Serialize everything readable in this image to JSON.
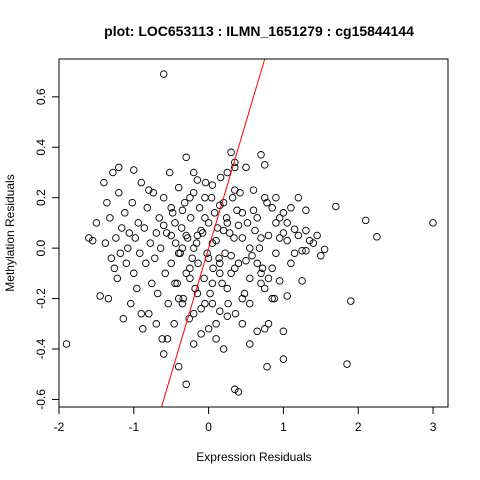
{
  "chart_data": {
    "type": "scatter",
    "title": "plot: LOC653113 : ILMN_1651279 : cg15844144",
    "xlabel": "Expression Residuals",
    "ylabel": "Methylation Residuals",
    "xlim": [
      -2.0,
      3.2
    ],
    "ylim": [
      -0.63,
      0.75
    ],
    "x_ticks": [
      -2,
      -1,
      0,
      1,
      2,
      3
    ],
    "x_tick_labels": [
      "-2",
      "-1",
      "0",
      "1",
      "2",
      "3"
    ],
    "y_ticks": [
      -0.6,
      -0.4,
      -0.2,
      0.0,
      0.2,
      0.4,
      0.6
    ],
    "y_tick_labels": [
      "-0.6",
      "-0.4",
      "-0.2",
      "0.0",
      "0.2",
      "0.4",
      "0.6"
    ],
    "point_color": "#000000",
    "fit_line": {
      "color": "#ff0000",
      "slope": 1.0,
      "intercept": 0.0
    },
    "points": [
      [
        -0.6,
        0.69
      ],
      [
        3.0,
        0.1
      ],
      [
        2.25,
        0.045
      ],
      [
        2.1,
        0.11
      ],
      [
        1.9,
        -0.21
      ],
      [
        1.85,
        -0.46
      ],
      [
        1.7,
        0.165
      ],
      [
        1.55,
        -0.005
      ],
      [
        1.5,
        -0.03
      ],
      [
        1.45,
        0.05
      ],
      [
        1.4,
        0.02
      ],
      [
        1.35,
        0.03
      ],
      [
        1.3,
        -0.01
      ],
      [
        1.25,
        -0.01
      ],
      [
        1.2,
        0.05
      ],
      [
        1.15,
        0.075
      ],
      [
        1.1,
        -0.06
      ],
      [
        1.05,
        0.03
      ],
      [
        1.0,
        0.14
      ],
      [
        0.95,
        0.12
      ],
      [
        0.9,
        0.2
      ],
      [
        0.88,
        -0.2
      ],
      [
        0.85,
        -0.2
      ],
      [
        0.8,
        -0.3
      ],
      [
        0.78,
        -0.47
      ],
      [
        0.75,
        -0.32
      ],
      [
        0.7,
        -0.1
      ],
      [
        1.3,
        0.15
      ],
      [
        1.2,
        0.2
      ],
      [
        1.25,
        -0.13
      ],
      [
        1.05,
        -0.19
      ],
      [
        1.0,
        -0.44
      ],
      [
        1.0,
        -0.33
      ],
      [
        0.95,
        0.04
      ],
      [
        0.9,
        0.1
      ],
      [
        0.85,
        -0.08
      ],
      [
        0.8,
        0.05
      ],
      [
        0.78,
        0.18
      ],
      [
        0.75,
        0.2
      ],
      [
        0.72,
        -0.08
      ],
      [
        0.7,
        -0.14
      ],
      [
        0.68,
        0.0
      ],
      [
        0.65,
        0.12
      ],
      [
        0.62,
        0.07
      ],
      [
        0.6,
        0.23
      ],
      [
        0.58,
        -0.03
      ],
      [
        0.55,
        -0.12
      ],
      [
        0.52,
        0.1
      ],
      [
        0.5,
        0.32
      ],
      [
        0.48,
        -0.18
      ],
      [
        0.45,
        0.04
      ],
      [
        0.42,
        0.22
      ],
      [
        0.4,
        -0.06
      ],
      [
        0.38,
        0.15
      ],
      [
        0.36,
        -0.26
      ],
      [
        0.34,
        0.04
      ],
      [
        0.32,
        0.2
      ],
      [
        0.3,
        -0.1
      ],
      [
        0.28,
        0.06
      ],
      [
        0.26,
        -0.22
      ],
      [
        0.24,
        0.12
      ],
      [
        0.22,
        -0.02
      ],
      [
        0.2,
        0.18
      ],
      [
        0.18,
        -0.14
      ],
      [
        0.16,
        0.28
      ],
      [
        0.14,
        -0.04
      ],
      [
        0.12,
        0.08
      ],
      [
        0.1,
        -0.3
      ],
      [
        0.08,
        0.14
      ],
      [
        0.06,
        -0.08
      ],
      [
        0.04,
        0.2
      ],
      [
        0.02,
        -0.18
      ],
      [
        0.0,
        0.1
      ],
      [
        -0.02,
        -0.02
      ],
      [
        -0.04,
        0.26
      ],
      [
        -0.06,
        -0.12
      ],
      [
        -0.08,
        0.06
      ],
      [
        -0.1,
        -0.24
      ],
      [
        -0.12,
        0.16
      ],
      [
        -0.14,
        -0.06
      ],
      [
        -0.16,
        0.02
      ],
      [
        -0.18,
        -0.16
      ],
      [
        -0.2,
        0.22
      ],
      [
        -0.22,
        -0.04
      ],
      [
        -0.24,
        0.12
      ],
      [
        -0.26,
        -0.28
      ],
      [
        -0.28,
        0.04
      ],
      [
        -0.3,
        -0.1
      ],
      [
        -0.32,
        0.18
      ],
      [
        -0.34,
        -0.2
      ],
      [
        -0.36,
        0.08
      ],
      [
        -0.38,
        -0.02
      ],
      [
        -0.4,
        0.24
      ],
      [
        -0.42,
        -0.14
      ],
      [
        -0.44,
        0.02
      ],
      [
        -0.46,
        -0.3
      ],
      [
        -0.48,
        0.14
      ],
      [
        -0.5,
        -0.06
      ],
      [
        -0.52,
        0.3
      ],
      [
        -0.54,
        -0.22
      ],
      [
        -0.56,
        0.06
      ],
      [
        -0.58,
        -0.1
      ],
      [
        -0.6,
        0.2
      ],
      [
        -0.62,
        -0.36
      ],
      [
        -0.64,
        0.0
      ],
      [
        -0.66,
        0.12
      ],
      [
        -0.68,
        -0.18
      ],
      [
        -0.7,
        0.06
      ],
      [
        -0.72,
        -0.04
      ],
      [
        -0.74,
        0.22
      ],
      [
        -0.76,
        -0.14
      ],
      [
        -0.78,
        0.02
      ],
      [
        -0.8,
        -0.26
      ],
      [
        -0.82,
        0.16
      ],
      [
        -0.84,
        -0.06
      ],
      [
        -0.86,
        0.08
      ],
      [
        -0.88,
        -0.32
      ],
      [
        -0.9,
        0.26
      ],
      [
        -0.92,
        -0.02
      ],
      [
        -0.94,
        0.1
      ],
      [
        -0.96,
        -0.16
      ],
      [
        -0.98,
        0.04
      ],
      [
        -1.0,
        -0.1
      ],
      [
        -1.02,
        0.18
      ],
      [
        -1.04,
        -0.22
      ],
      [
        -1.06,
        0.06
      ],
      [
        -1.08,
        0.0
      ],
      [
        -1.1,
        -0.06
      ],
      [
        -1.12,
        0.14
      ],
      [
        -1.14,
        -0.28
      ],
      [
        -1.16,
        0.08
      ],
      [
        -1.18,
        -0.02
      ],
      [
        -1.2,
        0.22
      ],
      [
        -1.22,
        -0.12
      ],
      [
        -1.24,
        0.04
      ],
      [
        -1.26,
        -0.08
      ],
      [
        -1.28,
        0.3
      ],
      [
        -1.3,
        -0.04
      ],
      [
        -1.32,
        0.12
      ],
      [
        -1.34,
        -0.2
      ],
      [
        -1.36,
        0.18
      ],
      [
        -1.38,
        0.02
      ],
      [
        -1.4,
        0.26
      ],
      [
        -1.45,
        -0.19
      ],
      [
        -1.5,
        0.1
      ],
      [
        -1.55,
        0.03
      ],
      [
        -1.6,
        0.04
      ],
      [
        -1.9,
        -0.38
      ],
      [
        -1.2,
        0.32
      ],
      [
        -1.0,
        0.31
      ],
      [
        -0.8,
        0.23
      ],
      [
        -0.3,
        0.36
      ],
      [
        -0.2,
        0.3
      ],
      [
        0.3,
        0.38
      ],
      [
        0.35,
        0.34
      ],
      [
        0.7,
        0.37
      ],
      [
        0.75,
        0.33
      ],
      [
        0.35,
        0.32
      ],
      [
        -0.6,
        -0.42
      ],
      [
        -0.55,
        -0.36
      ],
      [
        -0.4,
        -0.47
      ],
      [
        -0.3,
        -0.54
      ],
      [
        -0.2,
        -0.38
      ],
      [
        -0.1,
        -0.34
      ],
      [
        0.0,
        -0.32
      ],
      [
        0.1,
        -0.36
      ],
      [
        0.2,
        -0.4
      ],
      [
        0.35,
        -0.56
      ],
      [
        0.4,
        -0.57
      ],
      [
        0.55,
        -0.38
      ],
      [
        0.65,
        -0.33
      ],
      [
        -0.4,
        -0.2
      ],
      [
        -0.2,
        -0.26
      ],
      [
        0.05,
        -0.22
      ],
      [
        0.15,
        -0.25
      ],
      [
        0.25,
        -0.27
      ],
      [
        0.45,
        -0.3
      ],
      [
        0.55,
        -0.22
      ],
      [
        -0.7,
        -0.3
      ],
      [
        -0.9,
        -0.26
      ],
      [
        -0.5,
        0.05
      ],
      [
        -0.45,
        0.1
      ],
      [
        -0.35,
        0.0
      ],
      [
        -0.25,
        -0.08
      ],
      [
        -0.15,
        0.05
      ],
      [
        -0.05,
        0.12
      ],
      [
        0.05,
        0.02
      ],
      [
        0.15,
        -0.06
      ],
      [
        0.25,
        0.1
      ],
      [
        -0.35,
        0.15
      ],
      [
        -0.25,
        0.2
      ],
      [
        -0.15,
        0.27
      ],
      [
        -0.05,
        0.2
      ],
      [
        0.05,
        0.25
      ],
      [
        0.15,
        0.17
      ],
      [
        0.25,
        0.3
      ],
      [
        0.35,
        0.23
      ],
      [
        0.45,
        0.14
      ],
      [
        -0.45,
        -0.14
      ],
      [
        -0.35,
        -0.22
      ],
      [
        -0.25,
        -0.12
      ],
      [
        -0.15,
        -0.18
      ],
      [
        -0.05,
        -0.22
      ],
      [
        0.05,
        -0.14
      ],
      [
        0.15,
        -0.1
      ],
      [
        0.25,
        -0.16
      ],
      [
        0.35,
        -0.08
      ],
      [
        0.45,
        -0.2
      ],
      [
        0.55,
        0.0
      ],
      [
        0.65,
        -0.06
      ],
      [
        0.75,
        -0.16
      ],
      [
        0.85,
        0.16
      ],
      [
        0.95,
        -0.13
      ],
      [
        1.05,
        0.1
      ],
      [
        1.15,
        -0.02
      ],
      [
        1.3,
        0.07
      ],
      [
        0.2,
        0.07
      ],
      [
        0.1,
        0.03
      ],
      [
        0.0,
        -0.04
      ],
      [
        -0.1,
        0.07
      ],
      [
        -0.2,
        0.0
      ],
      [
        -0.3,
        0.05
      ],
      [
        -0.4,
        -0.02
      ],
      [
        -0.5,
        0.16
      ],
      [
        -0.6,
        0.09
      ],
      [
        0.3,
        -0.03
      ],
      [
        0.4,
        0.09
      ],
      [
        0.5,
        -0.05
      ],
      [
        0.6,
        0.15
      ],
      [
        0.7,
        0.04
      ],
      [
        0.8,
        -0.12
      ],
      [
        0.9,
        -0.02
      ],
      [
        1.0,
        0.06
      ],
      [
        1.1,
        0.16
      ]
    ]
  }
}
